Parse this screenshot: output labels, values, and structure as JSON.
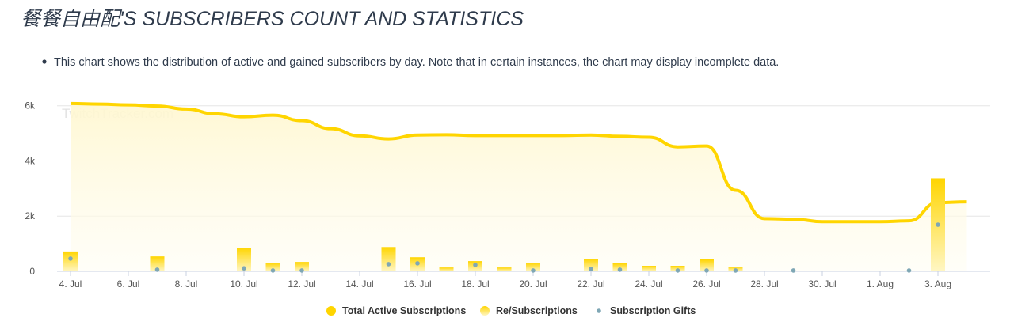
{
  "chart_data": {
    "type": "combo",
    "title": "餐餐自由配'S SUBSCRIBERS COUNT AND STATISTICS",
    "subtitle": "This chart shows the distribution of active and gained subscribers by day. Note that in certain instances, the chart may display incomplete data.",
    "watermark": "TwitchTracker.com",
    "categories": [
      "4. Jul",
      null,
      "6. Jul",
      null,
      "8. Jul",
      null,
      "10. Jul",
      null,
      "12. Jul",
      null,
      "14. Jul",
      null,
      "16. Jul",
      null,
      "18. Jul",
      null,
      "20. Jul",
      null,
      "22. Jul",
      null,
      "24. Jul",
      null,
      "26. Jul",
      null,
      "28. Jul",
      null,
      "30. Jul",
      null,
      "1. Aug",
      null,
      "3. Aug",
      null
    ],
    "series": [
      {
        "name": "Total Active Subscriptions",
        "type": "line",
        "color": "#ffd500",
        "values": [
          6080,
          6060,
          6030,
          5990,
          5880,
          5710,
          5600,
          5660,
          5460,
          5170,
          4910,
          4800,
          4940,
          4950,
          4920,
          4920,
          4920,
          4920,
          4940,
          4890,
          4860,
          4510,
          4540,
          2940,
          1910,
          1890,
          1800,
          1800,
          1800,
          1830,
          2490,
          2520
        ]
      },
      {
        "name": "Re/Subscriptions",
        "type": "bar",
        "color": "#ffd500",
        "values": [
          720,
          0,
          0,
          540,
          0,
          0,
          860,
          310,
          340,
          0,
          0,
          880,
          510,
          140,
          370,
          140,
          310,
          0,
          450,
          290,
          200,
          200,
          430,
          170,
          0,
          0,
          0,
          0,
          0,
          0,
          3370,
          0
        ]
      },
      {
        "name": "Subscription Gifts",
        "type": "scatter",
        "color": "#7fa7b5",
        "values": [
          460,
          null,
          null,
          60,
          null,
          null,
          110,
          30,
          30,
          null,
          null,
          260,
          290,
          null,
          230,
          null,
          30,
          null,
          90,
          60,
          null,
          30,
          30,
          30,
          null,
          30,
          null,
          null,
          null,
          30,
          1690,
          null
        ]
      }
    ],
    "ylim": [
      0,
      6250
    ],
    "yticks": [
      0,
      {
        "value": 2000,
        "label": "2k"
      },
      {
        "value": 4000,
        "label": "4k"
      },
      {
        "value": 6000,
        "label": "6k"
      }
    ],
    "grid": true,
    "legend": "bottom"
  }
}
